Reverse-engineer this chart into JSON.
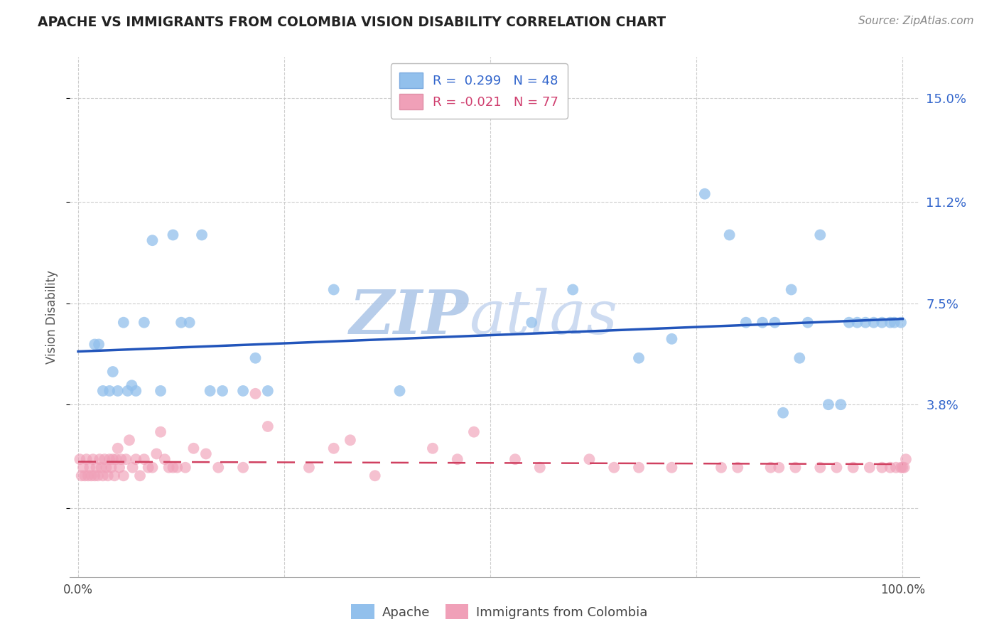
{
  "title": "APACHE VS IMMIGRANTS FROM COLOMBIA VISION DISABILITY CORRELATION CHART",
  "source": "Source: ZipAtlas.com",
  "ylabel": "Vision Disability",
  "xlim": [
    -0.01,
    1.02
  ],
  "ylim": [
    -0.025,
    0.165
  ],
  "yticks": [
    0.0,
    0.038,
    0.075,
    0.112,
    0.15
  ],
  "ytick_labels": [
    "",
    "3.8%",
    "7.5%",
    "11.2%",
    "15.0%"
  ],
  "xticks": [
    0.0,
    0.25,
    0.5,
    0.75,
    1.0
  ],
  "xtick_labels": [
    "0.0%",
    "",
    "",
    "",
    "100.0%"
  ],
  "background_color": "#ffffff",
  "grid_color": "#c8c8c8",
  "apache_color": "#92C0EC",
  "colombia_color": "#F0A0B8",
  "apache_line_color": "#2255BB",
  "colombia_line_color": "#D04060",
  "legend_apache_r": "0.299",
  "legend_apache_n": "48",
  "legend_colombia_r": "-0.021",
  "legend_colombia_n": "77",
  "apache_scatter_x": [
    0.02,
    0.025,
    0.03,
    0.038,
    0.042,
    0.048,
    0.055,
    0.06,
    0.065,
    0.07,
    0.08,
    0.09,
    0.1,
    0.115,
    0.125,
    0.135,
    0.15,
    0.16,
    0.175,
    0.2,
    0.215,
    0.23,
    0.31,
    0.39,
    0.55,
    0.6,
    0.68,
    0.72,
    0.76,
    0.79,
    0.81,
    0.83,
    0.845,
    0.855,
    0.865,
    0.875,
    0.885,
    0.9,
    0.91,
    0.925,
    0.935,
    0.945,
    0.955,
    0.965,
    0.975,
    0.985,
    0.99,
    0.998
  ],
  "apache_scatter_y": [
    0.06,
    0.06,
    0.043,
    0.043,
    0.05,
    0.043,
    0.068,
    0.043,
    0.045,
    0.043,
    0.068,
    0.098,
    0.043,
    0.1,
    0.068,
    0.068,
    0.1,
    0.043,
    0.043,
    0.043,
    0.055,
    0.043,
    0.08,
    0.043,
    0.068,
    0.08,
    0.055,
    0.062,
    0.115,
    0.1,
    0.068,
    0.068,
    0.068,
    0.035,
    0.08,
    0.055,
    0.068,
    0.1,
    0.038,
    0.038,
    0.068,
    0.068,
    0.068,
    0.068,
    0.068,
    0.068,
    0.068,
    0.068
  ],
  "colombia_scatter_x": [
    0.002,
    0.004,
    0.006,
    0.008,
    0.01,
    0.012,
    0.014,
    0.016,
    0.018,
    0.02,
    0.022,
    0.024,
    0.026,
    0.028,
    0.03,
    0.032,
    0.034,
    0.036,
    0.038,
    0.04,
    0.042,
    0.044,
    0.046,
    0.048,
    0.05,
    0.052,
    0.055,
    0.058,
    0.062,
    0.066,
    0.07,
    0.075,
    0.08,
    0.085,
    0.09,
    0.095,
    0.1,
    0.105,
    0.11,
    0.115,
    0.12,
    0.13,
    0.14,
    0.155,
    0.17,
    0.2,
    0.215,
    0.23,
    0.28,
    0.31,
    0.33,
    0.36,
    0.43,
    0.46,
    0.48,
    0.53,
    0.56,
    0.62,
    0.65,
    0.68,
    0.72,
    0.78,
    0.8,
    0.84,
    0.85,
    0.87,
    0.9,
    0.92,
    0.94,
    0.96,
    0.975,
    0.985,
    0.992,
    0.998,
    1.0,
    1.002,
    1.004
  ],
  "colombia_scatter_y": [
    0.018,
    0.012,
    0.015,
    0.012,
    0.018,
    0.012,
    0.015,
    0.012,
    0.018,
    0.012,
    0.015,
    0.012,
    0.018,
    0.015,
    0.012,
    0.018,
    0.015,
    0.012,
    0.018,
    0.015,
    0.018,
    0.012,
    0.018,
    0.022,
    0.015,
    0.018,
    0.012,
    0.018,
    0.025,
    0.015,
    0.018,
    0.012,
    0.018,
    0.015,
    0.015,
    0.02,
    0.028,
    0.018,
    0.015,
    0.015,
    0.015,
    0.015,
    0.022,
    0.02,
    0.015,
    0.015,
    0.042,
    0.03,
    0.015,
    0.022,
    0.025,
    0.012,
    0.022,
    0.018,
    0.028,
    0.018,
    0.015,
    0.018,
    0.015,
    0.015,
    0.015,
    0.015,
    0.015,
    0.015,
    0.015,
    0.015,
    0.015,
    0.015,
    0.015,
    0.015,
    0.015,
    0.015,
    0.015,
    0.015,
    0.015,
    0.015,
    0.018
  ],
  "watermark_zip": "ZIP",
  "watermark_atlas": "atlas",
  "watermark_color": "#C8D8F0",
  "marker_size": 130,
  "title_fontsize": 13.5,
  "source_fontsize": 11,
  "tick_fontsize": 12,
  "ylabel_fontsize": 12
}
